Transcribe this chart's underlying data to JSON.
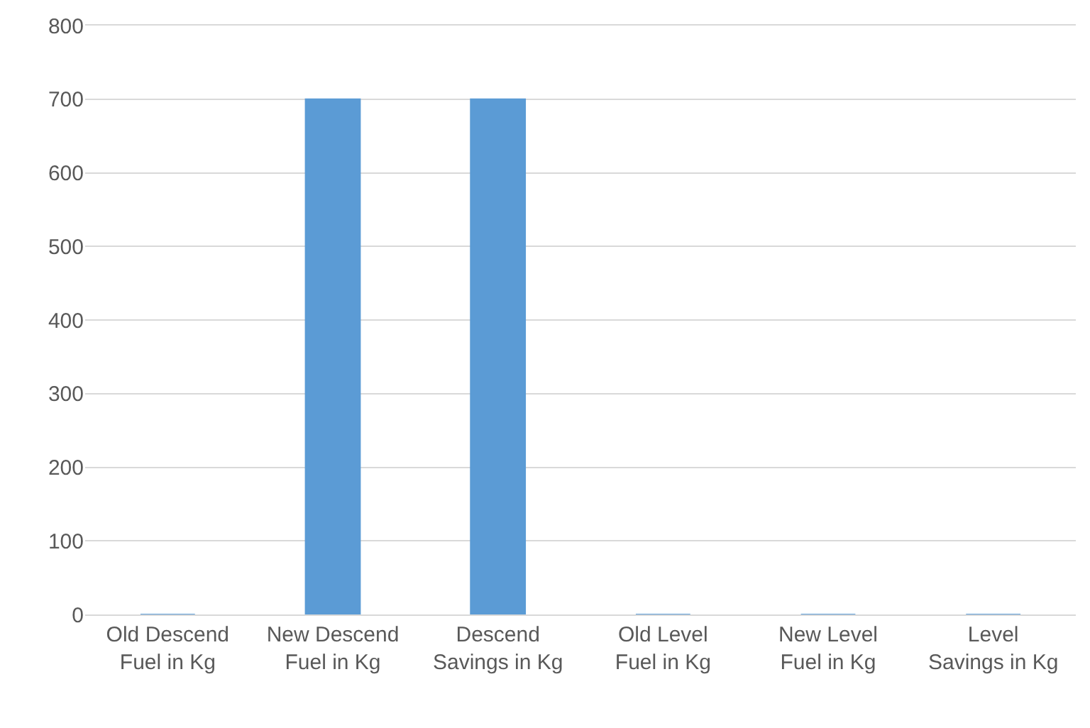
{
  "chart_data": {
    "type": "bar",
    "categories": [
      "Old Descend Fuel in Kg",
      "New Descend Fuel in Kg",
      "Descend Savings in Kg",
      "Old Level Fuel in Kg",
      "New Level Fuel in Kg",
      "Level Savings in Kg"
    ],
    "values": [
      0,
      700,
      700,
      0,
      0,
      0
    ],
    "color": "#5b9bd5",
    "ylim": [
      0,
      800
    ],
    "yticks": [
      0,
      100,
      200,
      300,
      400,
      500,
      600,
      700,
      800
    ],
    "grid": "y",
    "legend": false
  }
}
